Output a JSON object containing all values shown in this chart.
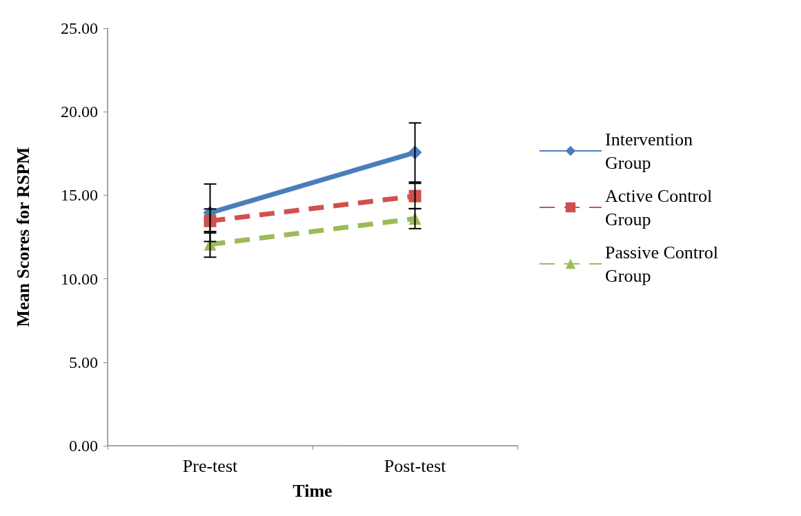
{
  "chart_data": {
    "type": "line",
    "xlabel": "Time",
    "ylabel": "Mean Scores for RSPM",
    "categories": [
      "Pre-test",
      "Post-test"
    ],
    "ylim": [
      0,
      25
    ],
    "yticks": [
      {
        "value": 0,
        "label": "0.00"
      },
      {
        "value": 5,
        "label": "5.00"
      },
      {
        "value": 10,
        "label": "10.00"
      },
      {
        "value": 15,
        "label": "15.00"
      },
      {
        "value": 20,
        "label": "20.00"
      },
      {
        "value": 25,
        "label": "25.00"
      }
    ],
    "grid": false,
    "legend": "right",
    "series": [
      {
        "name": "Intervention Group",
        "color": "#4a7ebb",
        "values": [
          13.95,
          17.56
        ],
        "errors": [
          1.72,
          1.77
        ],
        "marker": "diamond",
        "line_style": "solid"
      },
      {
        "name": "Active Control Group",
        "color": "#d0504d",
        "values": [
          13.46,
          14.95
        ],
        "errors": [
          0.72,
          0.76
        ],
        "marker": "square",
        "line_style": "dashed"
      },
      {
        "name": "Passive Control Group",
        "color": "#9bbb59",
        "values": [
          12.06,
          13.6
        ],
        "errors": [
          0.77,
          0.6
        ],
        "marker": "triangle",
        "line_style": "dashed"
      }
    ]
  }
}
